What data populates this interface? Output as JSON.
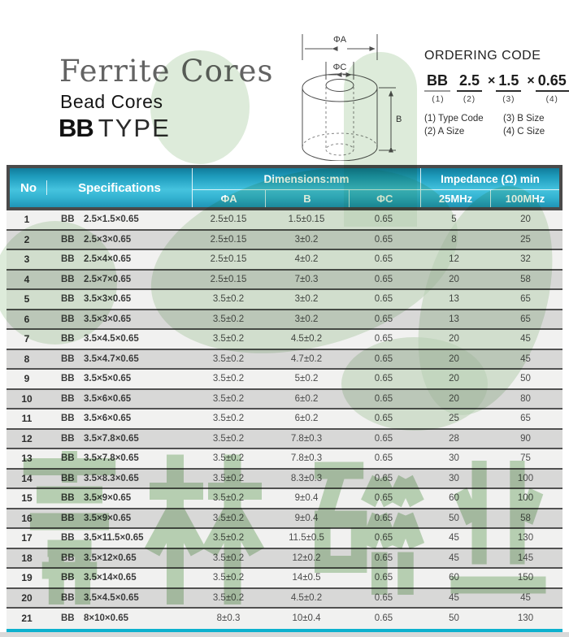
{
  "page": {
    "title": "Ferrite Cores",
    "subtitle": "Bead Cores",
    "type_code": "BB",
    "type_word": "TYPE"
  },
  "diagram": {
    "label_outer_diameter": "ΦA",
    "label_inner_diameter": "ΦC",
    "label_height": "B"
  },
  "ordering": {
    "heading": "ORDERING CODE",
    "multiply_sign": "×",
    "segments": [
      {
        "value": "BB",
        "index_label": "(1)"
      },
      {
        "value": "2.5",
        "index_label": "(2)"
      },
      {
        "value": "1.5",
        "index_label": "(3)"
      },
      {
        "value": "0.65",
        "index_label": "(4)"
      }
    ],
    "legend": [
      "(1) Type Code",
      "(3) B Size",
      "(2) A Size",
      "(4) C Size"
    ]
  },
  "table": {
    "header": {
      "no": "No",
      "specifications": "Specifications",
      "dimensions_group": "Dimensions:mm",
      "dimension_columns": [
        "ΦA",
        "B",
        "ΦC"
      ],
      "impedance_group": "Impedance (Ω) min",
      "impedance_columns": [
        "25MHz",
        "100MHz"
      ]
    },
    "rows": [
      {
        "no": "1",
        "prefix": "BB",
        "size": "2.5×1.5×0.65",
        "phi_a": "2.5±0.15",
        "b": "1.5±0.15",
        "phi_c": "0.65",
        "mhz25": "5",
        "mhz100": "20"
      },
      {
        "no": "2",
        "prefix": "BB",
        "size": "2.5×3×0.65",
        "phi_a": "2.5±0.15",
        "b": "3±0.2",
        "phi_c": "0.65",
        "mhz25": "8",
        "mhz100": "25"
      },
      {
        "no": "3",
        "prefix": "BB",
        "size": "2.5×4×0.65",
        "phi_a": "2.5±0.15",
        "b": "4±0.2",
        "phi_c": "0.65",
        "mhz25": "12",
        "mhz100": "32"
      },
      {
        "no": "4",
        "prefix": "BB",
        "size": "2.5×7×0.65",
        "phi_a": "2.5±0.15",
        "b": "7±0.3",
        "phi_c": "0.65",
        "mhz25": "20",
        "mhz100": "58"
      },
      {
        "no": "5",
        "prefix": "BB",
        "size": "3.5×3×0.65",
        "phi_a": "3.5±0.2",
        "b": "3±0.2",
        "phi_c": "0.65",
        "mhz25": "13",
        "mhz100": "65"
      },
      {
        "no": "6",
        "prefix": "BB",
        "size": "3.5×3×0.65",
        "phi_a": "3.5±0.2",
        "b": "3±0.2",
        "phi_c": "0.65",
        "mhz25": "13",
        "mhz100": "65"
      },
      {
        "no": "7",
        "prefix": "BB",
        "size": "3.5×4.5×0.65",
        "phi_a": "3.5±0.2",
        "b": "4.5±0.2",
        "phi_c": "0.65",
        "mhz25": "20",
        "mhz100": "45"
      },
      {
        "no": "8",
        "prefix": "BB",
        "size": "3.5×4.7×0.65",
        "phi_a": "3.5±0.2",
        "b": "4.7±0.2",
        "phi_c": "0.65",
        "mhz25": "20",
        "mhz100": "45"
      },
      {
        "no": "9",
        "prefix": "BB",
        "size": "3.5×5×0.65",
        "phi_a": "3.5±0.2",
        "b": "5±0.2",
        "phi_c": "0.65",
        "mhz25": "20",
        "mhz100": "50"
      },
      {
        "no": "10",
        "prefix": "BB",
        "size": "3.5×6×0.65",
        "phi_a": "3.5±0.2",
        "b": "6±0.2",
        "phi_c": "0.65",
        "mhz25": "20",
        "mhz100": "80"
      },
      {
        "no": "11",
        "prefix": "BB",
        "size": "3.5×6×0.65",
        "phi_a": "3.5±0.2",
        "b": "6±0.2",
        "phi_c": "0.65",
        "mhz25": "25",
        "mhz100": "65"
      },
      {
        "no": "12",
        "prefix": "BB",
        "size": "3.5×7.8×0.65",
        "phi_a": "3.5±0.2",
        "b": "7.8±0.3",
        "phi_c": "0.65",
        "mhz25": "28",
        "mhz100": "90"
      },
      {
        "no": "13",
        "prefix": "BB",
        "size": "3.5×7.8×0.65",
        "phi_a": "3.5±0.2",
        "b": "7.8±0.3",
        "phi_c": "0.65",
        "mhz25": "30",
        "mhz100": "75"
      },
      {
        "no": "14",
        "prefix": "BB",
        "size": "3.5×8.3×0.65",
        "phi_a": "3.5±0.2",
        "b": "8.3±0.3",
        "phi_c": "0.65",
        "mhz25": "30",
        "mhz100": "100"
      },
      {
        "no": "15",
        "prefix": "BB",
        "size": "3.5×9×0.65",
        "phi_a": "3.5±0.2",
        "b": "9±0.4",
        "phi_c": "0.65",
        "mhz25": "60",
        "mhz100": "100"
      },
      {
        "no": "16",
        "prefix": "BB",
        "size": "3.5×9×0.65",
        "phi_a": "3.5±0.2",
        "b": "9±0.4",
        "phi_c": "0.65",
        "mhz25": "50",
        "mhz100": "58"
      },
      {
        "no": "17",
        "prefix": "BB",
        "size": "3.5×11.5×0.65",
        "phi_a": "3.5±0.2",
        "b": "11.5±0.5",
        "phi_c": "0.65",
        "mhz25": "45",
        "mhz100": "130"
      },
      {
        "no": "18",
        "prefix": "BB",
        "size": "3.5×12×0.65",
        "phi_a": "3.5±0.2",
        "b": "12±0.2",
        "phi_c": "0.65",
        "mhz25": "45",
        "mhz100": "145"
      },
      {
        "no": "19",
        "prefix": "BB",
        "size": "3.5×14×0.65",
        "phi_a": "3.5±0.2",
        "b": "14±0.5",
        "phi_c": "0.65",
        "mhz25": "60",
        "mhz100": "150"
      },
      {
        "no": "20",
        "prefix": "BB",
        "size": "3.5×4.5×0.65",
        "phi_a": "3.5±0.2",
        "b": "4.5±0.2",
        "phi_c": "0.65",
        "mhz25": "45",
        "mhz100": "45"
      },
      {
        "no": "21",
        "prefix": "BB",
        "size": "8×10×0.65",
        "phi_a": "8±0.3",
        "b": "10±0.4",
        "phi_c": "0.65",
        "mhz25": "50",
        "mhz100": "130"
      }
    ]
  },
  "watermark": {
    "characters": "嘉林磁业",
    "color": "#9cc394"
  },
  "colors": {
    "header_teal_dark": "#117c9b",
    "header_teal_light": "#45c3de",
    "table_border_dark": "#4a4a4a",
    "bottom_line_teal": "#0cb1ce",
    "row_light": "#f1f1f0",
    "row_gray": "#d8d8d7",
    "watermark_green": "#c7dec2"
  }
}
